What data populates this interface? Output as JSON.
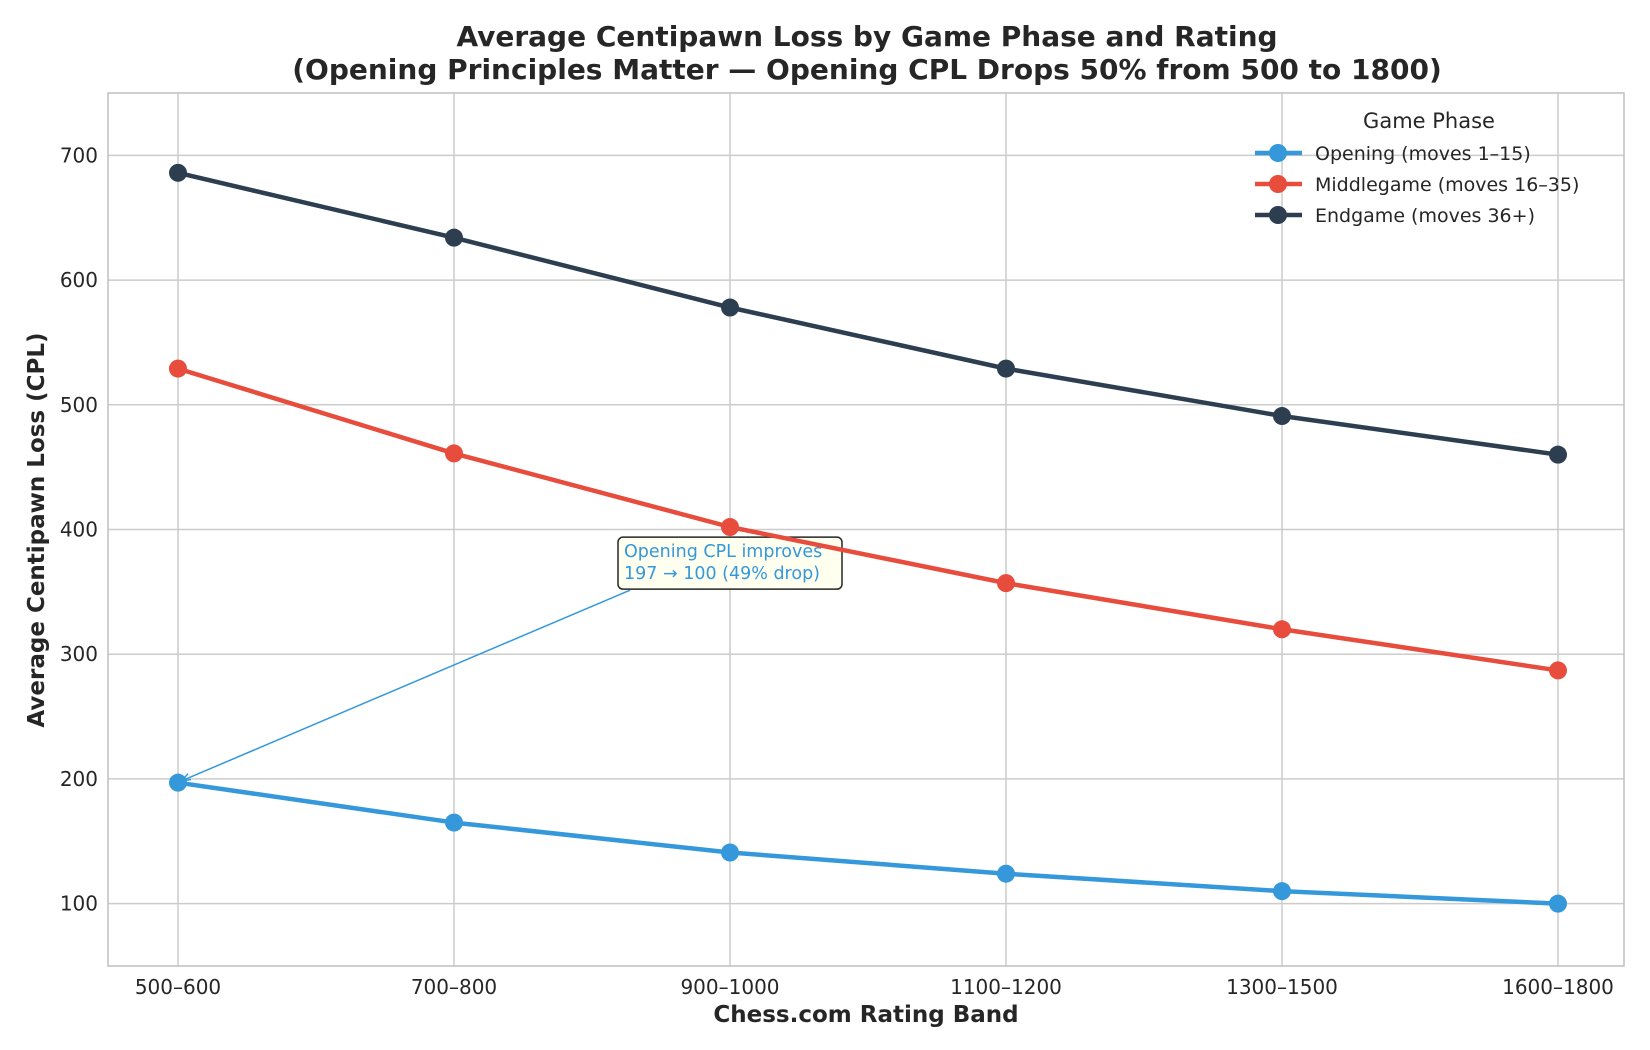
{
  "chart_data": {
    "type": "line",
    "title": "Average Centipawn Loss by Game Phase and Rating",
    "subtitle": "(Opening Principles Matter — Opening CPL Drops 50% from 500 to 1800)",
    "xlabel": "Chess.com Rating Band",
    "ylabel": "Average Centipawn Loss (CPL)",
    "categories": [
      "500–600",
      "700–800",
      "900–1000",
      "1100–1200",
      "1300–1500",
      "1600–1800"
    ],
    "ylim": [
      50,
      750
    ],
    "yticks": [
      100,
      200,
      300,
      400,
      500,
      600,
      700
    ],
    "grid": true,
    "legend": {
      "title": "Game Phase",
      "placement": "top-right"
    },
    "series": [
      {
        "name": "Opening (moves 1–15)",
        "color": "#3498db",
        "values": [
          197,
          165,
          141,
          124,
          110,
          100
        ]
      },
      {
        "name": "Middlegame (moves 16–35)",
        "color": "#e74c3c",
        "values": [
          529,
          461,
          402,
          357,
          320,
          287
        ]
      },
      {
        "name": "Endgame (moves 36+)",
        "color": "#2c3e50",
        "values": [
          686,
          634,
          578,
          529,
          491,
          460
        ]
      }
    ],
    "annotation": {
      "lines": [
        "Opening CPL improves",
        "197 → 100 (49% drop)"
      ],
      "series_index": 0,
      "category_index": 0,
      "text_anchor": {
        "category_position": 2.0,
        "y": 365
      },
      "color": "#3498db",
      "box_fill": "#fffff0"
    }
  }
}
